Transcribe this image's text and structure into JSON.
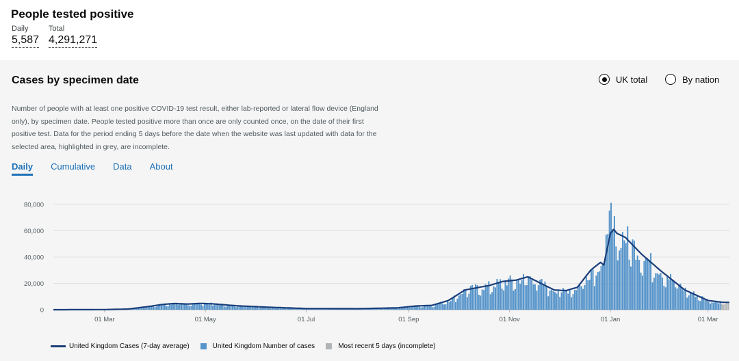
{
  "headline": {
    "title": "People tested positive",
    "daily_label": "Daily",
    "daily_value": "5,587",
    "total_label": "Total",
    "total_value": "4,291,271"
  },
  "card": {
    "title": "Cases by specimen date",
    "radio_uk": "UK total",
    "radio_nation": "By nation",
    "description": "Number of people with at least one positive COVID-19 test result, either lab-reported or lateral flow device (England only), by specimen date. People tested positive more than once are only counted once, on the date of their first positive test. Data for the period ending 5 days before the date when the website was last updated with data for the selected area, highlighted in grey, are incomplete.",
    "tabs": [
      "Daily",
      "Cumulative",
      "Data",
      "About"
    ],
    "active_tab": "Daily"
  },
  "colors": {
    "bar": "#5694ca",
    "line": "#1a3e7a",
    "incomplete": "#b1b4b6",
    "link": "#1d70b8"
  },
  "chart_data": {
    "type": "bar",
    "x_start": "2020-01-30",
    "x_end": "2021-03-14",
    "ylim": [
      0,
      80000
    ],
    "y_ticks": [
      "0",
      "20,000",
      "40,000",
      "60,000",
      "80,000"
    ],
    "x_ticks": [
      "01 Mar",
      "01 May",
      "01 Jul",
      "01 Sep",
      "01 Nov",
      "01 Jan",
      "01 Mar"
    ],
    "x_tick_dates": [
      "2020-03-01",
      "2020-05-01",
      "2020-07-01",
      "2020-09-01",
      "2020-11-01",
      "2021-01-01",
      "2021-03-01"
    ],
    "incomplete_days": 5,
    "series": [
      {
        "name": "United Kingdom Cases (7-day average)",
        "kind": "line",
        "points": [
          [
            "2020-01-30",
            0
          ],
          [
            "2020-03-01",
            100
          ],
          [
            "2020-03-15",
            500
          ],
          [
            "2020-03-25",
            2000
          ],
          [
            "2020-04-05",
            4000
          ],
          [
            "2020-04-12",
            4700
          ],
          [
            "2020-04-20",
            4300
          ],
          [
            "2020-04-28",
            4800
          ],
          [
            "2020-05-05",
            4500
          ],
          [
            "2020-05-20",
            3000
          ],
          [
            "2020-06-10",
            1800
          ],
          [
            "2020-07-01",
            900
          ],
          [
            "2020-08-01",
            800
          ],
          [
            "2020-08-25",
            1400
          ],
          [
            "2020-09-05",
            2800
          ],
          [
            "2020-09-15",
            3300
          ],
          [
            "2020-09-25",
            7000
          ],
          [
            "2020-10-05",
            15000
          ],
          [
            "2020-10-20",
            18500
          ],
          [
            "2020-10-28",
            21500
          ],
          [
            "2020-11-05",
            22500
          ],
          [
            "2020-11-12",
            25000
          ],
          [
            "2020-11-20",
            20000
          ],
          [
            "2020-11-28",
            15000
          ],
          [
            "2020-12-05",
            14500
          ],
          [
            "2020-12-12",
            17000
          ],
          [
            "2020-12-20",
            30000
          ],
          [
            "2020-12-26",
            36000
          ],
          [
            "2020-12-28",
            34000
          ],
          [
            "2021-01-01",
            58000
          ],
          [
            "2021-01-03",
            61000
          ],
          [
            "2021-01-05",
            58000
          ],
          [
            "2021-01-10",
            55000
          ],
          [
            "2021-01-20",
            42000
          ],
          [
            "2021-02-01",
            29000
          ],
          [
            "2021-02-15",
            15000
          ],
          [
            "2021-03-01",
            7000
          ],
          [
            "2021-03-10",
            5600
          ]
        ]
      },
      {
        "name": "United Kingdom Number of cases",
        "kind": "bar",
        "values": [
          5587
        ]
      },
      {
        "name": "Most recent 5 days (incomplete)",
        "kind": "bar"
      }
    ]
  }
}
